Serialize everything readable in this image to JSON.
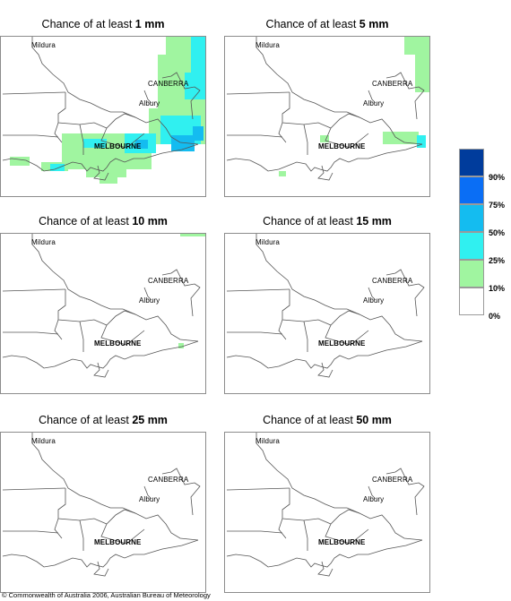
{
  "panels": [
    {
      "title_prefix": "Chance of at least ",
      "amount": "1 mm"
    },
    {
      "title_prefix": "Chance of at least ",
      "amount": "5 mm"
    },
    {
      "title_prefix": "Chance of at least ",
      "amount": "10 mm"
    },
    {
      "title_prefix": "Chance of at least ",
      "amount": "15 mm"
    },
    {
      "title_prefix": "Chance of at least ",
      "amount": "25 mm"
    },
    {
      "title_prefix": "Chance of at least ",
      "amount": "50 mm"
    }
  ],
  "cities": {
    "mildura": "Mildura",
    "canberra": "CANBERRA",
    "albury": "Albury",
    "melbourne": "MELBOURNE"
  },
  "legend": {
    "items": [
      {
        "label": "90%",
        "color": "#003c9c"
      },
      {
        "label": "75%",
        "color": "#0a6ef5"
      },
      {
        "label": "50%",
        "color": "#14bcf0"
      },
      {
        "label": "25%",
        "color": "#30f0f0"
      },
      {
        "label": "10%",
        "color": "#a0f5a0"
      },
      {
        "label": "0%",
        "color": "#ffffff"
      }
    ]
  },
  "footer": "© Commonwealth of Australia 2006, Australian Bureau of Meteorology"
}
